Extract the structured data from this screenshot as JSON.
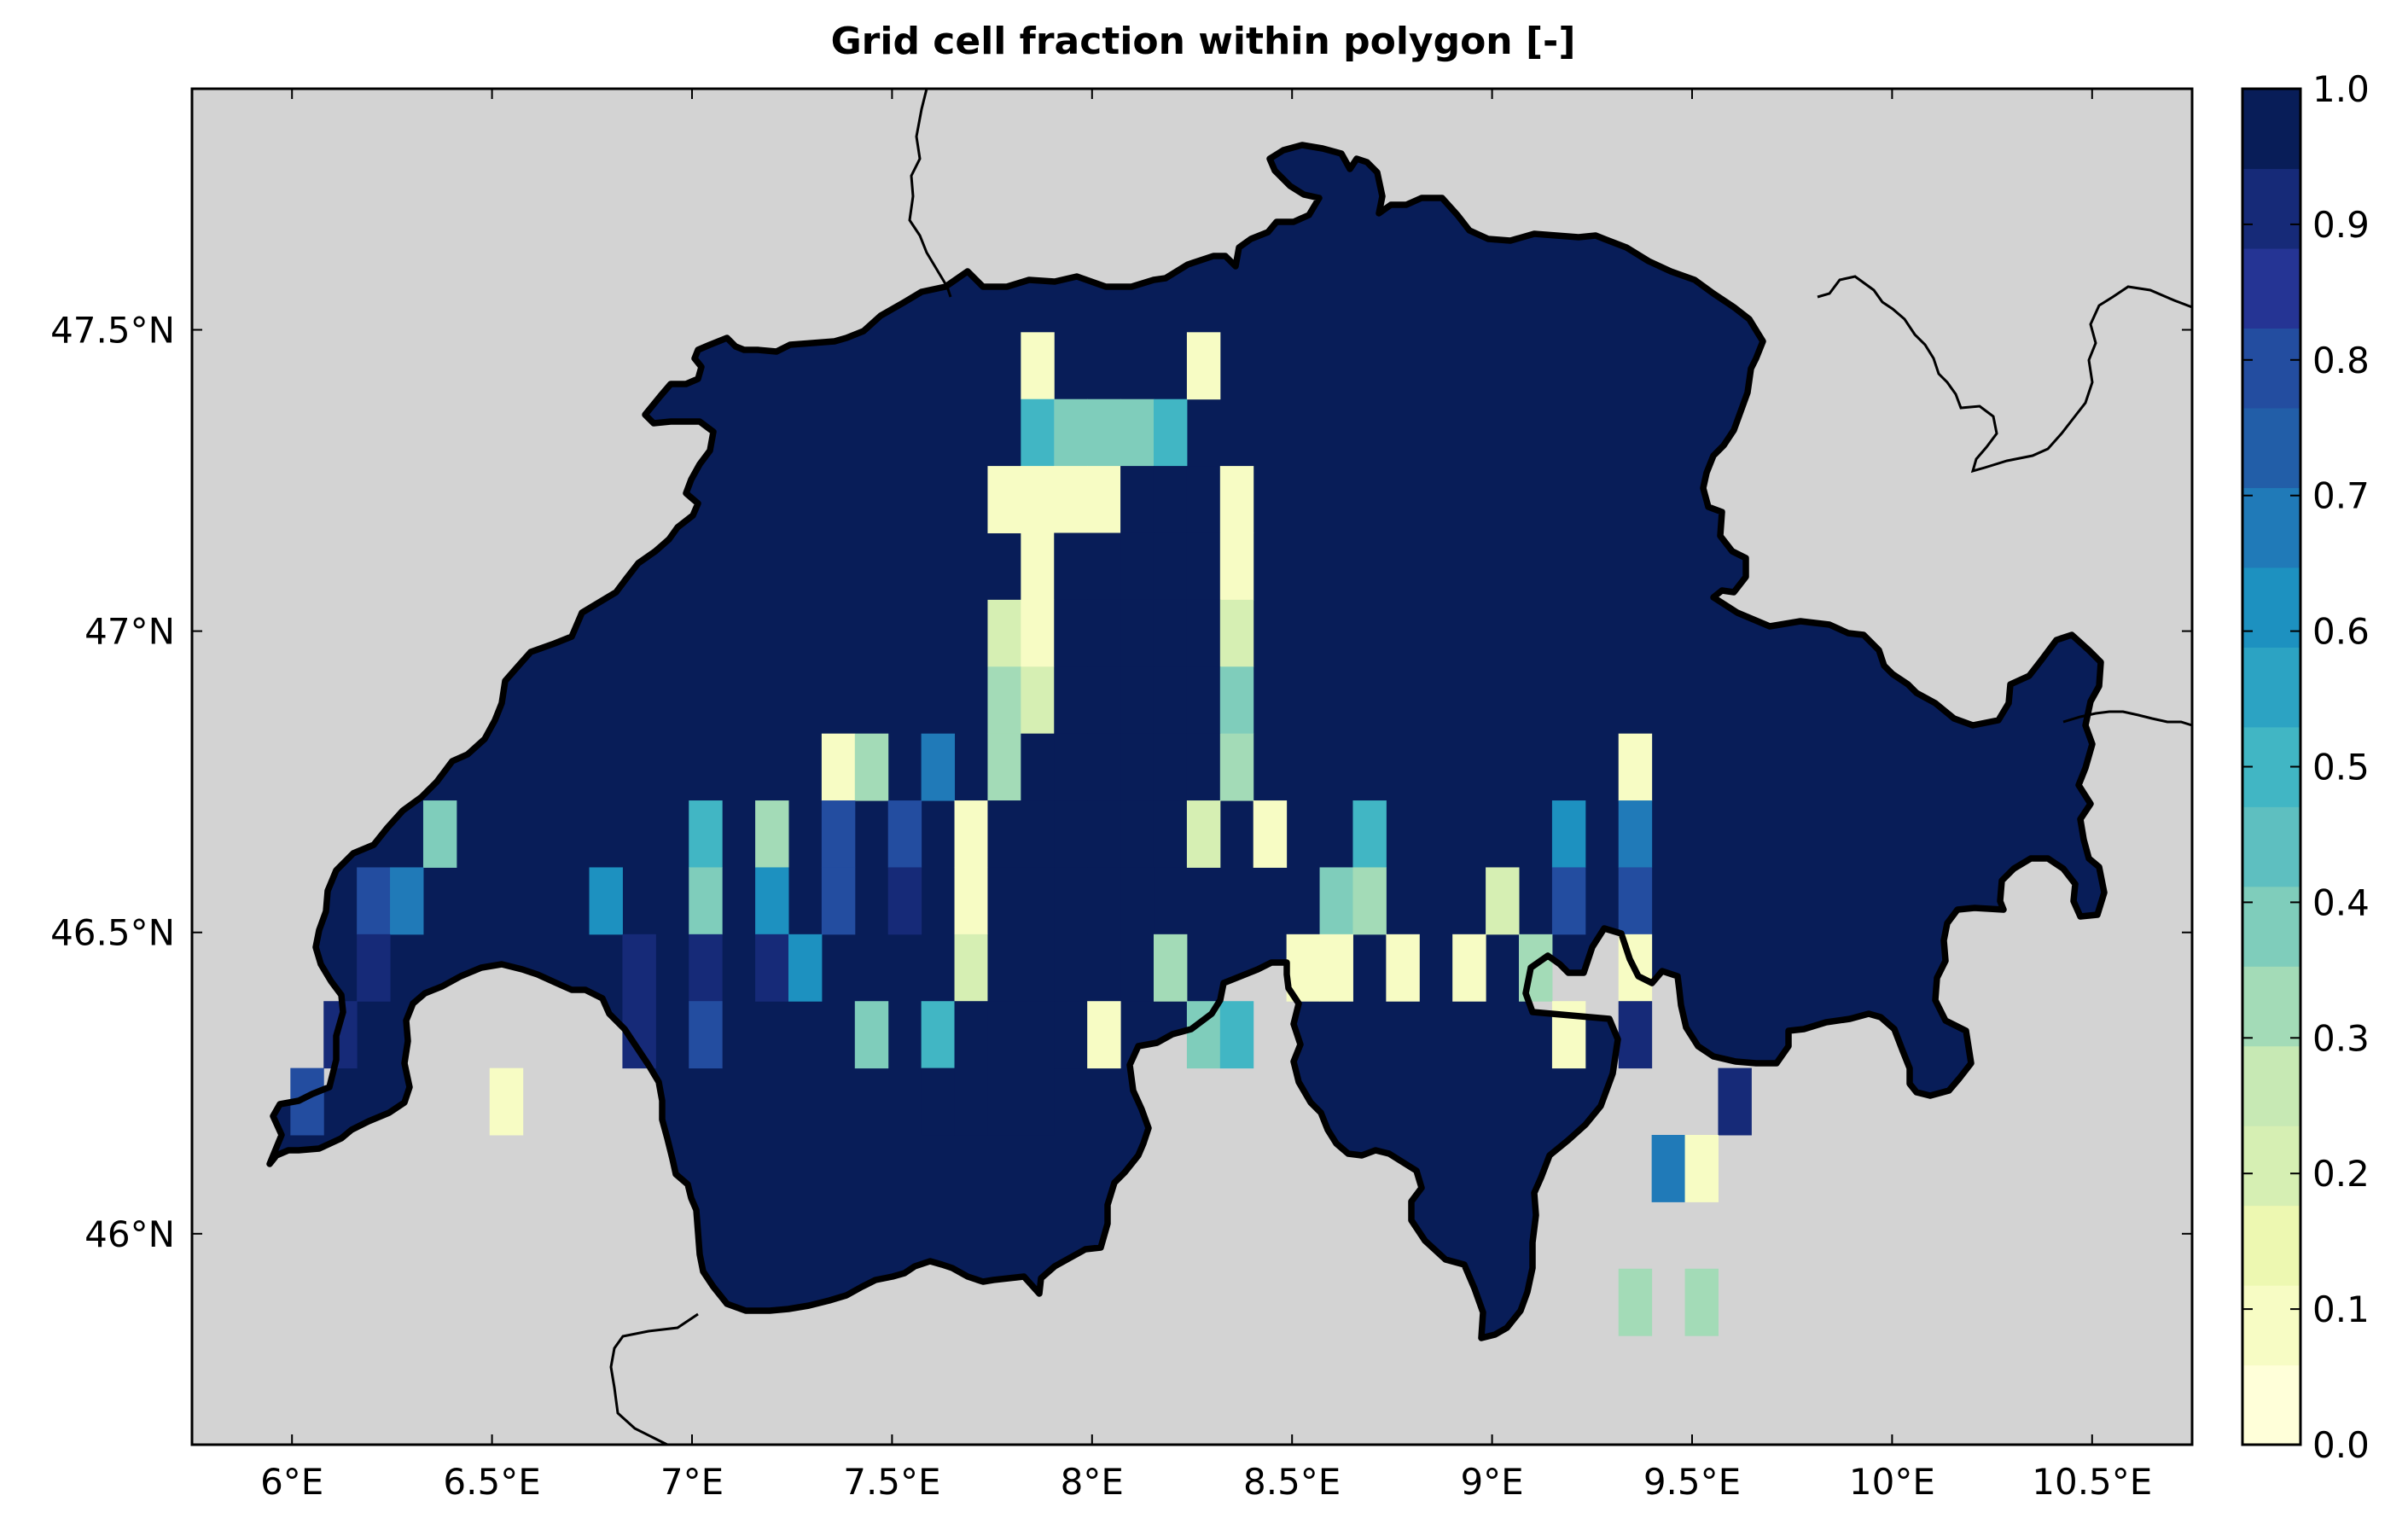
{
  "map": {
    "title": "Grid cell fraction within polygon [-]",
    "x_ticks": [
      "6°E",
      "6.5°E",
      "7°E",
      "7.5°E",
      "8°E",
      "8.5°E",
      "9°E",
      "9.5°E",
      "10°E",
      "10.5°E"
    ],
    "x_tick_values": [
      6.0,
      6.5,
      7.0,
      7.5,
      8.0,
      8.5,
      9.0,
      9.5,
      10.0,
      10.5
    ],
    "y_ticks": [
      "47.5°N",
      "47°N",
      "46.5°N",
      "46°N"
    ],
    "y_tick_values": [
      47.5,
      47.0,
      46.5,
      46.0
    ],
    "lon_range": [
      5.75,
      10.75
    ],
    "lat_range": [
      45.65,
      47.9
    ],
    "background_color": "#d3d3d3",
    "grid_cells": {
      "lon_step": 0.083,
      "lat_step": 0.111,
      "lon_start": 5.83,
      "lat_start": 45.72,
      "rows": [
        "...................................................",
        "........................1....1.....................",
        "........................54445......................",
        ".......................11110001....................",
        "........................1000001....................",
        ".......................21000002....................",
        ".......................32000004....................",
        "..................13.7.30000003...........1........",
        "......4.......5.3.8.8.10000002.1..5.....6.7........",
        "....87.....6..4.6.8.9.100000.....43...2.8.8........",
        "....9.......9.9.96....2000003...11.1.1.3..1........",
        "...9........9.8....4.500001..45.........1.9........",
        "..8.....1............0000....................9.....",
        "...........................................71......",
        ".....................................................",
        "..........................................3.3......",
        "..................................................."
      ]
    },
    "colorbar": {
      "min": 0.0,
      "max": 1.0,
      "tick_labels": [
        "0.0",
        "0.1",
        "0.2",
        "0.3",
        "0.4",
        "0.5",
        "0.6",
        "0.7",
        "0.8",
        "0.9",
        "1.0"
      ],
      "colors": [
        "#ffffd9",
        "#f7fcc4",
        "#edf8b1",
        "#d6efb3",
        "#c7e9b4",
        "#a3dbb7",
        "#7fcdbb",
        "#5ebfc0",
        "#41b6c4",
        "#2ca3c3",
        "#1d91c0",
        "#207ab8",
        "#225ea8",
        "#234da0",
        "#253494",
        "#162a78",
        "#081d58"
      ]
    }
  }
}
